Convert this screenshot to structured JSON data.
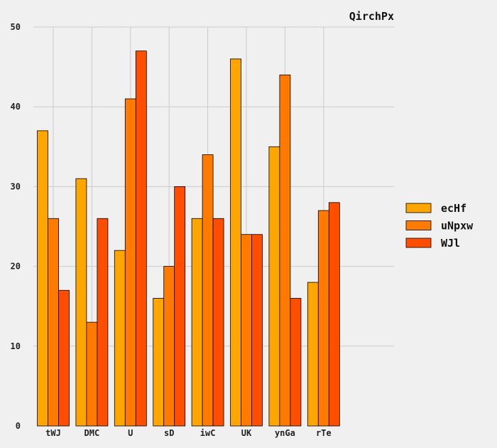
{
  "chart_data": {
    "type": "bar",
    "title": "QirchPx",
    "xlabel": "",
    "ylabel": "",
    "categories": [
      "tWJ",
      "DMC",
      "U",
      "sD",
      "iwC",
      "UK",
      "ynGa",
      "rTe"
    ],
    "series": [
      {
        "name": "ecHf",
        "color": "#ffa500",
        "values": [
          37,
          31,
          22,
          16,
          26,
          46,
          35,
          18
        ]
      },
      {
        "name": "uNpxw",
        "color": "#ff7a00",
        "values": [
          26,
          13,
          41,
          20,
          34,
          24,
          44,
          27
        ]
      },
      {
        "name": "WJl",
        "color": "#ff4e00",
        "values": [
          17,
          26,
          47,
          30,
          26,
          24,
          16,
          28
        ]
      }
    ],
    "ylim": [
      0,
      50
    ],
    "yticks": [
      0,
      10,
      20,
      30,
      40,
      50
    ],
    "grid": true,
    "legend_position": "center-right",
    "background": "#f0f0f0",
    "grid_color": "#cbcbcb",
    "edge_color": "#000000"
  }
}
